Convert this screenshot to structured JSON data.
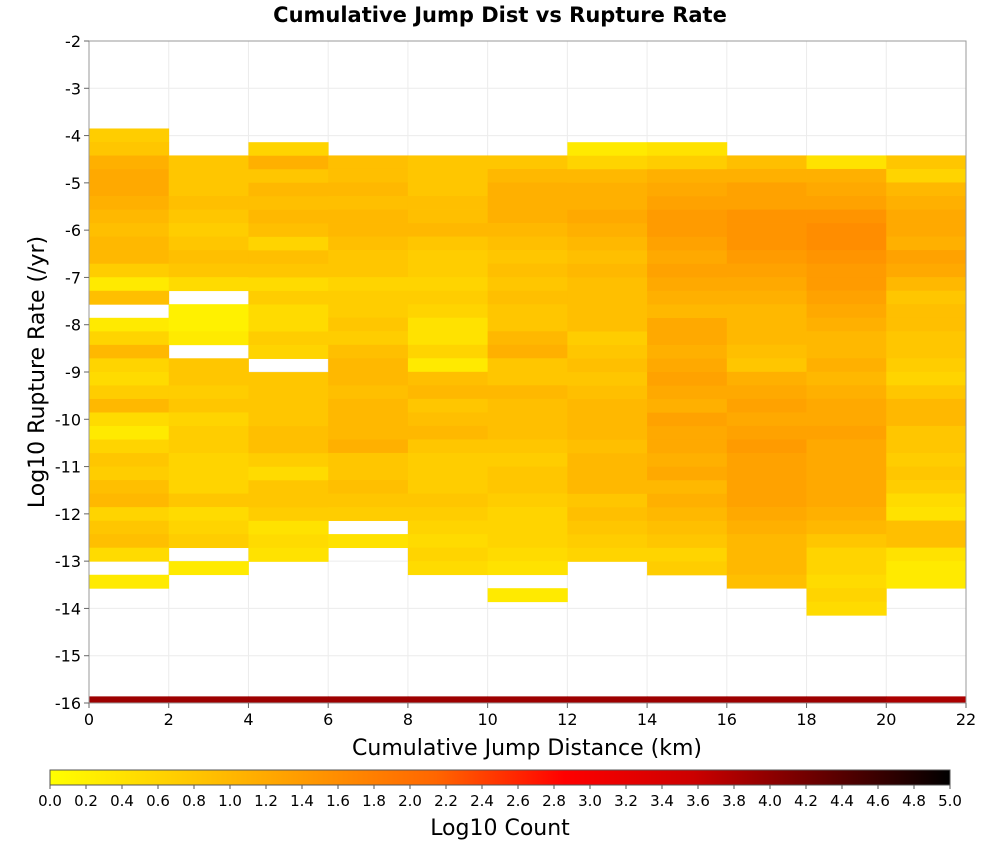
{
  "chart_data": {
    "type": "heatmap",
    "title": "Cumulative Jump Dist vs Rupture Rate",
    "xlabel": "Cumulative Jump Distance (km)",
    "ylabel": "Log10 Rupture Rate (/yr)",
    "xlim": [
      0,
      22
    ],
    "ylim": [
      -16,
      -2
    ],
    "x_ticks": [
      "0",
      "2",
      "4",
      "6",
      "8",
      "10",
      "12",
      "14",
      "16",
      "18",
      "20",
      "22"
    ],
    "y_ticks": [
      "-2",
      "-3",
      "-4",
      "-5",
      "-6",
      "-7",
      "-8",
      "-9",
      "-10",
      "-11",
      "-12",
      "-13",
      "-14",
      "-15",
      "-16"
    ],
    "x_bin_edges": [
      0,
      2,
      4,
      6,
      8,
      10,
      12,
      14,
      16,
      18,
      20,
      22
    ],
    "y_bin_size": 0.286,
    "grid": true,
    "colorbar": {
      "label": "Log10 Count",
      "min": 0.0,
      "max": 5.0,
      "ticks": [
        "0.0",
        "0.2",
        "0.4",
        "0.6",
        "0.8",
        "1.0",
        "1.2",
        "1.4",
        "1.6",
        "1.8",
        "2.0",
        "2.2",
        "2.4",
        "2.6",
        "2.8",
        "3.0",
        "3.2",
        "3.4",
        "3.6",
        "3.8",
        "4.0",
        "4.2",
        "4.4",
        "4.6",
        "4.8",
        "5.0"
      ],
      "colors": [
        "#ffff00",
        "#ffcc00",
        "#ff9900",
        "#ff6600",
        "#ff0000",
        "#cc0000",
        "#660000",
        "#000000"
      ]
    },
    "columns": [
      {
        "x_start": 0,
        "x_end": 2,
        "y_top": -3.85,
        "values": [
          0.7,
          0.8,
          1.1,
          1.2,
          1.2,
          1.1,
          1.0,
          0.9,
          1.0,
          1.0,
          0.7,
          0.3,
          0.9,
          null,
          0.3,
          0.6,
          1.0,
          0.6,
          0.5,
          0.7,
          1.0,
          0.5,
          0.3,
          0.6,
          0.8,
          0.7,
          0.9,
          1.0,
          0.6,
          0.8,
          0.9,
          0.5,
          null,
          0.3
        ]
      },
      {
        "x_start": 2,
        "x_end": 4,
        "y_top": -4.42,
        "values": [
          0.8,
          0.8,
          0.8,
          0.9,
          0.8,
          0.7,
          0.8,
          0.9,
          0.8,
          0.5,
          null,
          0.2,
          0.2,
          0.3,
          null,
          0.8,
          0.8,
          0.7,
          0.8,
          0.6,
          0.7,
          0.7,
          0.6,
          0.6,
          0.6,
          0.8,
          0.5,
          0.6,
          0.7,
          null,
          0.3
        ]
      },
      {
        "x_start": 4,
        "x_end": 6,
        "y_top": -4.14,
        "values": [
          0.6,
          1.1,
          0.8,
          1.0,
          0.9,
          1.0,
          0.9,
          0.6,
          0.9,
          0.8,
          0.5,
          0.7,
          0.5,
          0.5,
          0.7,
          0.6,
          null,
          0.8,
          0.8,
          0.8,
          0.8,
          0.9,
          0.9,
          0.7,
          0.5,
          0.8,
          0.8,
          0.7,
          0.4,
          0.5,
          0.4
        ]
      },
      {
        "x_start": 6,
        "x_end": 8,
        "y_top": -4.42,
        "values": [
          0.9,
          0.9,
          1.0,
          0.9,
          1.0,
          1.0,
          0.9,
          0.8,
          0.8,
          0.6,
          0.7,
          0.7,
          0.8,
          0.7,
          0.9,
          1.0,
          1.0,
          0.9,
          1.0,
          1.0,
          1.0,
          1.1,
          0.8,
          0.8,
          0.9,
          0.8,
          0.7,
          null,
          0.4
        ]
      },
      {
        "x_start": 8,
        "x_end": 10,
        "y_top": -4.42,
        "values": [
          0.8,
          0.8,
          0.8,
          0.9,
          0.9,
          1.0,
          0.8,
          0.7,
          0.7,
          0.6,
          0.7,
          0.6,
          0.4,
          0.4,
          0.6,
          0.3,
          0.9,
          1.0,
          0.8,
          0.9,
          1.0,
          0.8,
          0.7,
          0.7,
          0.7,
          0.8,
          0.7,
          0.6,
          0.5,
          0.6,
          0.5
        ]
      },
      {
        "x_start": 10,
        "x_end": 12,
        "y_top": -4.42,
        "values": [
          0.8,
          1.0,
          1.1,
          1.1,
          1.1,
          1.0,
          0.9,
          0.8,
          0.9,
          0.8,
          0.9,
          0.8,
          0.8,
          1.0,
          1.1,
          0.8,
          0.8,
          1.0,
          0.9,
          0.9,
          0.9,
          0.8,
          0.7,
          0.8,
          0.8,
          0.7,
          0.6,
          0.6,
          0.6,
          0.5,
          0.4,
          null,
          0.3
        ]
      },
      {
        "x_start": 12,
        "x_end": 14,
        "y_top": -4.14,
        "values": [
          0.3,
          0.6,
          1.0,
          1.1,
          1.1,
          1.2,
          1.1,
          1.0,
          0.9,
          1.0,
          0.9,
          0.9,
          0.9,
          0.9,
          0.7,
          0.8,
          0.9,
          0.8,
          0.9,
          1.0,
          1.0,
          1.0,
          0.9,
          1.0,
          1.0,
          1.0,
          0.8,
          0.9,
          0.8,
          0.7,
          0.6
        ]
      },
      {
        "x_start": 14,
        "x_end": 16,
        "y_top": -4.14,
        "values": [
          0.4,
          0.7,
          1.1,
          1.2,
          1.3,
          1.4,
          1.4,
          1.3,
          1.2,
          1.3,
          1.2,
          1.1,
          1.0,
          1.2,
          1.2,
          1.1,
          1.2,
          1.3,
          1.2,
          1.1,
          1.3,
          1.2,
          1.2,
          1.1,
          1.2,
          1.0,
          1.1,
          1.0,
          0.9,
          0.8,
          0.6,
          0.7
        ]
      },
      {
        "x_start": 16,
        "x_end": 18,
        "y_top": -4.42,
        "values": [
          0.9,
          1.1,
          1.3,
          1.3,
          1.5,
          1.5,
          1.5,
          1.4,
          1.3,
          1.2,
          1.1,
          1.0,
          1.0,
          1.0,
          0.9,
          0.8,
          1.1,
          1.2,
          1.3,
          1.2,
          1.3,
          1.4,
          1.3,
          1.3,
          1.3,
          1.3,
          1.2,
          1.1,
          1.0,
          1.0,
          1.0,
          0.9
        ]
      },
      {
        "x_start": 18,
        "x_end": 20,
        "y_top": -4.42,
        "values": [
          0.4,
          1.1,
          1.2,
          1.3,
          1.5,
          1.6,
          1.6,
          1.5,
          1.4,
          1.4,
          1.3,
          1.2,
          1.1,
          1.0,
          1.0,
          1.1,
          1.0,
          1.1,
          1.2,
          1.2,
          1.3,
          1.2,
          1.2,
          1.2,
          1.2,
          1.2,
          1.1,
          1.0,
          0.8,
          0.6,
          0.6,
          0.5,
          0.6,
          0.5
        ]
      },
      {
        "x_start": 20,
        "x_end": 22,
        "y_top": -4.42,
        "values": [
          0.8,
          0.6,
          1.0,
          1.1,
          1.2,
          1.2,
          1.1,
          1.3,
          1.2,
          1.0,
          0.8,
          0.9,
          0.9,
          0.8,
          0.8,
          0.7,
          0.6,
          0.8,
          1.0,
          1.0,
          0.8,
          0.8,
          0.7,
          0.8,
          0.7,
          0.5,
          0.4,
          0.9,
          0.9,
          0.4,
          0.3,
          0.3
        ]
      }
    ],
    "bottom_row": {
      "y_start": -16.0,
      "y_end": -15.86,
      "values": [
        3.9,
        3.9,
        3.9,
        3.9,
        3.9,
        3.9,
        3.9,
        3.9,
        3.9,
        3.9,
        3.8
      ]
    }
  }
}
